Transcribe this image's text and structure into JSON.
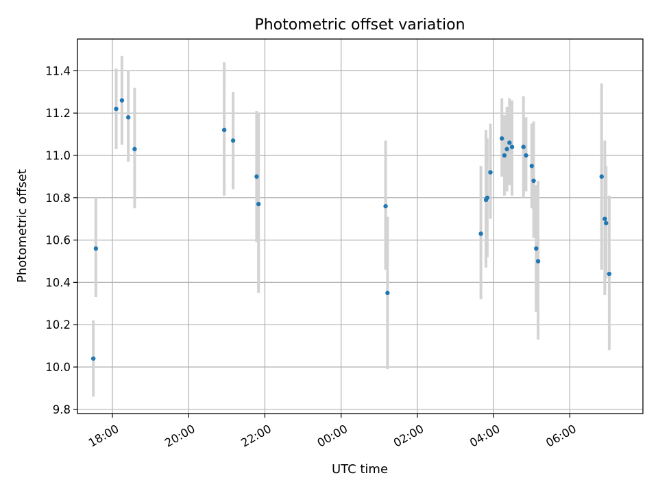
{
  "chart_data": {
    "type": "scatter",
    "title": "Photometric offset variation",
    "xlabel": "UTC time",
    "ylabel": "Photometric offset",
    "x_unit": "UTC time (HH:MM)",
    "xlim": [
      "17:05",
      "07:55"
    ],
    "ylim": [
      9.78,
      11.55
    ],
    "xticks": [
      "18:00",
      "20:00",
      "22:00",
      "00:00",
      "02:00",
      "04:00",
      "06:00"
    ],
    "yticks": [
      "9.8",
      "10.0",
      "10.2",
      "10.4",
      "10.6",
      "10.8",
      "11.0",
      "11.2",
      "11.4"
    ],
    "grid": true,
    "colors": {
      "point": "#1f77b4",
      "errorbar": "#d3d3d3",
      "grid": "#b0b0b0"
    },
    "points": [
      {
        "x": "17:30",
        "y": 10.04,
        "yerr_low": 9.86,
        "yerr_high": 10.22
      },
      {
        "x": "17:34",
        "y": 10.56,
        "yerr_low": 10.33,
        "yerr_high": 10.8
      },
      {
        "x": "18:06",
        "y": 11.22,
        "yerr_low": 11.03,
        "yerr_high": 11.41
      },
      {
        "x": "18:15",
        "y": 11.26,
        "yerr_low": 11.05,
        "yerr_high": 11.47
      },
      {
        "x": "18:25",
        "y": 11.18,
        "yerr_low": 10.97,
        "yerr_high": 11.4
      },
      {
        "x": "18:35",
        "y": 11.03,
        "yerr_low": 10.75,
        "yerr_high": 11.32
      },
      {
        "x": "20:56",
        "y": 11.12,
        "yerr_low": 10.81,
        "yerr_high": 11.44
      },
      {
        "x": "21:10",
        "y": 11.07,
        "yerr_low": 10.84,
        "yerr_high": 11.3
      },
      {
        "x": "21:47",
        "y": 10.9,
        "yerr_low": 10.59,
        "yerr_high": 11.21
      },
      {
        "x": "21:50",
        "y": 10.77,
        "yerr_low": 10.35,
        "yerr_high": 11.2
      },
      {
        "x": "01:10",
        "y": 10.76,
        "yerr_low": 10.46,
        "yerr_high": 11.07
      },
      {
        "x": "01:13",
        "y": 10.35,
        "yerr_low": 9.99,
        "yerr_high": 10.71
      },
      {
        "x": "03:40",
        "y": 10.63,
        "yerr_low": 10.32,
        "yerr_high": 10.95
      },
      {
        "x": "03:48",
        "y": 10.79,
        "yerr_low": 10.47,
        "yerr_high": 11.12
      },
      {
        "x": "03:50",
        "y": 10.8,
        "yerr_low": 10.52,
        "yerr_high": 11.08
      },
      {
        "x": "03:55",
        "y": 10.92,
        "yerr_low": 10.7,
        "yerr_high": 11.15
      },
      {
        "x": "04:13",
        "y": 11.08,
        "yerr_low": 10.9,
        "yerr_high": 11.27
      },
      {
        "x": "04:17",
        "y": 11.0,
        "yerr_low": 10.81,
        "yerr_high": 11.19
      },
      {
        "x": "04:21",
        "y": 11.03,
        "yerr_low": 10.83,
        "yerr_high": 11.23
      },
      {
        "x": "04:25",
        "y": 11.06,
        "yerr_low": 10.86,
        "yerr_high": 11.27
      },
      {
        "x": "04:29",
        "y": 11.04,
        "yerr_low": 10.81,
        "yerr_high": 11.26
      },
      {
        "x": "04:47",
        "y": 11.04,
        "yerr_low": 10.8,
        "yerr_high": 11.28
      },
      {
        "x": "04:51",
        "y": 11.0,
        "yerr_low": 10.83,
        "yerr_high": 11.18
      },
      {
        "x": "05:00",
        "y": 10.95,
        "yerr_low": 10.75,
        "yerr_high": 11.15
      },
      {
        "x": "05:03",
        "y": 10.88,
        "yerr_low": 10.61,
        "yerr_high": 11.16
      },
      {
        "x": "05:07",
        "y": 10.56,
        "yerr_low": 10.26,
        "yerr_high": 10.86
      },
      {
        "x": "05:10",
        "y": 10.5,
        "yerr_low": 10.13,
        "yerr_high": 10.88
      },
      {
        "x": "06:50",
        "y": 10.9,
        "yerr_low": 10.46,
        "yerr_high": 11.34
      },
      {
        "x": "06:55",
        "y": 10.7,
        "yerr_low": 10.34,
        "yerr_high": 11.07
      },
      {
        "x": "06:57",
        "y": 10.68,
        "yerr_low": 10.42,
        "yerr_high": 10.95
      },
      {
        "x": "07:02",
        "y": 10.44,
        "yerr_low": 10.08,
        "yerr_high": 10.81
      }
    ]
  }
}
